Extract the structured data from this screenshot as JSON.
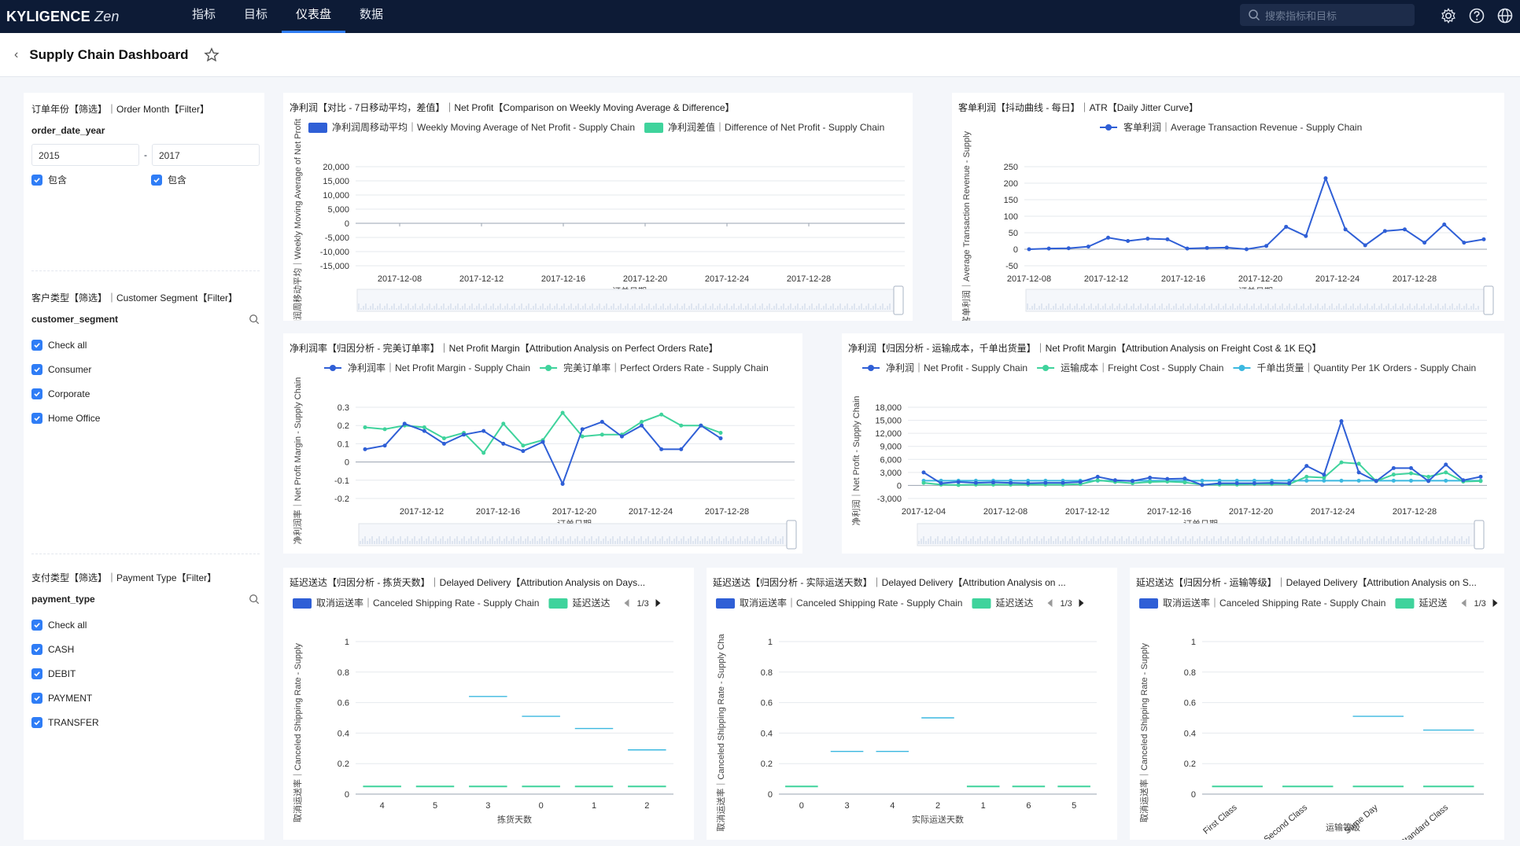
{
  "app": {
    "brand": "KYLIGENCE",
    "brand_suffix": "Zen"
  },
  "nav": [
    {
      "label": "指标"
    },
    {
      "label": "目标"
    },
    {
      "label": "仪表盘",
      "active": true
    },
    {
      "label": "数据"
    }
  ],
  "search": {
    "placeholder": "搜索指标和目标"
  },
  "page": {
    "title": "Supply Chain Dashboard"
  },
  "colors": {
    "accent": "#2f7df6",
    "series_blue": "#2f5fd6",
    "series_green": "#3fd39c",
    "series_cyan": "#3bb8e0",
    "header_bg": "#0d1b36"
  },
  "filters": {
    "order_month": {
      "title": "订单年份【筛选】｜Order Month【Filter】",
      "field": "order_date_year",
      "from": "2015",
      "to": "2017",
      "include_label": "包含"
    },
    "segment": {
      "title": "客户类型【筛选】｜Customer Segment【Filter】",
      "field": "customer_segment",
      "options": [
        "Check all",
        "Consumer",
        "Corporate",
        "Home Office"
      ]
    },
    "payment": {
      "title": "支付类型【筛选】｜Payment Type【Filter】",
      "field": "payment_type",
      "options": [
        "Check all",
        "CASH",
        "DEBIT",
        "PAYMENT",
        "TRANSFER"
      ]
    }
  },
  "chart_data": [
    {
      "id": "c1",
      "type": "bar",
      "title": "净利润【对比 - 7日移动平均，差值】｜Net Profit【Comparison on Weekly Moving Average & Difference】",
      "series": [
        {
          "name": "净利润周移动平均｜Weekly Moving Average of Net Profit - Supply Chain"
        },
        {
          "name": "净利润差值｜Difference of Net Profit - Supply Chain"
        }
      ],
      "ylabel": "净利润周移动平均｜Weekly Moving Average of Net Profit",
      "xlabel": "订单日期",
      "yticks": [
        "20,000",
        "15,000",
        "10,000",
        "5,000",
        "0",
        "-5,000",
        "-10,000",
        "-15,000"
      ],
      "xticks": [
        "2017-12-08",
        "2017-12-12",
        "2017-12-16",
        "2017-12-20",
        "2017-12-24",
        "2017-12-28"
      ],
      "ylim": [
        -15000,
        20000
      ]
    },
    {
      "id": "c2",
      "type": "line",
      "title": "客单利润【抖动曲线 - 每日】｜ATR【Daily Jitter Curve】",
      "series": [
        {
          "name": "客单利润｜Average Transaction Revenue - Supply Chain",
          "values": [
            0,
            2,
            3,
            8,
            35,
            25,
            32,
            30,
            2,
            4,
            5,
            0,
            10,
            68,
            40,
            215,
            60,
            12,
            55,
            60,
            20,
            75,
            20,
            30
          ]
        }
      ],
      "ylabel": "客单利润｜Average Transaction Revenue - Supply",
      "xlabel": "订单日期",
      "yticks": [
        "250",
        "200",
        "150",
        "100",
        "50",
        "0",
        "-50"
      ],
      "xticks": [
        "2017-12-08",
        "2017-12-12",
        "2017-12-16",
        "2017-12-20",
        "2017-12-24",
        "2017-12-28"
      ],
      "ylim": [
        -50,
        250
      ]
    },
    {
      "id": "c3",
      "type": "line",
      "title": "净利润率【归因分析 - 完美订单率】｜Net Profit Margin【Attribution Analysis on Perfect Orders Rate】",
      "series": [
        {
          "name": "净利润率｜Net Profit Margin - Supply Chain",
          "values": [
            0.07,
            0.09,
            0.21,
            0.17,
            0.1,
            0.15,
            0.17,
            0.1,
            0.06,
            0.11,
            -0.12,
            0.18,
            0.22,
            0.14,
            0.2,
            0.07,
            0.07,
            0.2,
            0.13
          ]
        },
        {
          "name": "完美订单率｜Perfect Orders Rate - Supply Chain",
          "values": [
            0.19,
            0.18,
            0.2,
            0.19,
            0.13,
            0.16,
            0.05,
            0.21,
            0.09,
            0.12,
            0.27,
            0.14,
            0.15,
            0.15,
            0.22,
            0.26,
            0.2,
            0.2,
            0.16
          ]
        }
      ],
      "ylabel": "净利润率｜Net Profit Margin - Supply Chain",
      "xlabel": "订单日期",
      "yticks": [
        "0.3",
        "0.2",
        "0.1",
        "0",
        "-0.1",
        "-0.2"
      ],
      "xticks": [
        "2017-12-12",
        "2017-12-16",
        "2017-12-20",
        "2017-12-24",
        "2017-12-28"
      ],
      "ylim": [
        -0.2,
        0.3
      ]
    },
    {
      "id": "c4",
      "type": "line",
      "title": "净利润【归因分析 - 运输成本，千单出货量】｜Net Profit Margin【Attribution Analysis on Freight Cost & 1K EQ】",
      "series": [
        {
          "name": "净利润｜Net Profit - Supply Chain",
          "values": [
            3000,
            500,
            800,
            600,
            700,
            600,
            500,
            600,
            600,
            800,
            2000,
            1200,
            1000,
            1800,
            1500,
            1600,
            100,
            500,
            500,
            500,
            600,
            500,
            4500,
            2500,
            14800,
            3000,
            1000,
            4000,
            4000,
            1000,
            4800,
            1200,
            2000
          ]
        },
        {
          "name": "运输成本｜Freight Cost - Supply Chain",
          "values": [
            600,
            200,
            100,
            200,
            200,
            200,
            200,
            200,
            200,
            300,
            1200,
            800,
            500,
            800,
            900,
            700,
            200,
            200,
            200,
            300,
            300,
            300,
            2000,
            1800,
            5300,
            5000,
            1000,
            2500,
            2800,
            2000,
            3000,
            900,
            1000
          ]
        },
        {
          "name": "千单出货量｜Quantity Per 1K Orders - Supply Chain",
          "values": [
            1100,
            1100,
            1100,
            1100,
            1100,
            1100,
            1100,
            1100,
            1100,
            1100,
            1100,
            1100,
            1100,
            1100,
            1100,
            1100,
            1100,
            1100,
            1100,
            1100,
            1100,
            1100,
            1100,
            1100,
            1100,
            1100,
            1100,
            1100,
            1100,
            1100,
            1100,
            1100,
            1100
          ]
        }
      ],
      "ylabel": "净利润｜Net Profit - Supply Chain",
      "xlabel": "订单日期",
      "yticks": [
        "18,000",
        "15,000",
        "12,000",
        "9,000",
        "6,000",
        "3,000",
        "0",
        "-3,000"
      ],
      "xticks": [
        "2017-12-04",
        "2017-12-08",
        "2017-12-12",
        "2017-12-16",
        "2017-12-20",
        "2017-12-24",
        "2017-12-28"
      ],
      "ylim": [
        -3000,
        18000
      ]
    },
    {
      "id": "c5",
      "type": "bar",
      "title": "延迟送达【归因分析 - 拣货天数】｜Delayed Delivery【Attribution Analysis on Days...",
      "series": [
        {
          "name": "取消运送率｜Canceled Shipping Rate - Supply Chain",
          "values": [
            0.05,
            0.05,
            0.05,
            0.05,
            0.05,
            0.05
          ]
        },
        {
          "name": "延迟送达",
          "values": [
            0.0,
            0.0,
            0.64,
            0.51,
            0.43,
            0.29
          ]
        }
      ],
      "pager": "1/3",
      "ylabel": "取消运送率｜Canceled Shipping Rate - Supply",
      "xlabel": "拣货天数",
      "categories": [
        "4",
        "5",
        "3",
        "0",
        "1",
        "2"
      ],
      "yticks": [
        "1",
        "0.8",
        "0.6",
        "0.4",
        "0.2",
        "0"
      ],
      "ylim": [
        0,
        1
      ]
    },
    {
      "id": "c6",
      "type": "bar",
      "title": "延迟送达【归因分析 - 实际运送天数】｜Delayed Delivery【Attribution Analysis on ...",
      "series": [
        {
          "name": "取消运送率｜Canceled Shipping Rate - Supply Chain",
          "values": [
            0.05,
            0,
            0,
            0,
            0.05,
            0.05,
            0.05
          ]
        },
        {
          "name": "延迟送达",
          "values": [
            0,
            0.28,
            0.28,
            0.5,
            0,
            0,
            0
          ]
        }
      ],
      "pager": "1/3",
      "ylabel": "取消运送率｜Canceled Shipping Rate - Supply Cha",
      "xlabel": "实际运送天数",
      "categories": [
        "0",
        "3",
        "4",
        "2",
        "1",
        "6",
        "5"
      ],
      "yticks": [
        "1",
        "0.8",
        "0.6",
        "0.4",
        "0.2",
        "0"
      ],
      "ylim": [
        0,
        1
      ]
    },
    {
      "id": "c7",
      "type": "bar",
      "title": "延迟送达【归因分析 - 运输等级】｜Delayed Delivery【Attribution Analysis on S...",
      "series": [
        {
          "name": "取消运送率｜Canceled Shipping Rate - Supply Chain",
          "values": [
            0.05,
            0.05,
            0.05,
            0.05
          ]
        },
        {
          "name": "延迟送达",
          "values": [
            0.0,
            0.0,
            0.51,
            0.42
          ]
        }
      ],
      "pager": "1/3",
      "legend2_short": "延迟送",
      "ylabel": "取消运送率｜Canceled Shipping Rate - Supply",
      "xlabel": "运输等级",
      "categories": [
        "First Class",
        "Second Class",
        "Same Day",
        "Standard Class"
      ],
      "yticks": [
        "1",
        "0.8",
        "0.6",
        "0.4",
        "0.2",
        "0"
      ],
      "ylim": [
        0,
        1
      ]
    }
  ]
}
